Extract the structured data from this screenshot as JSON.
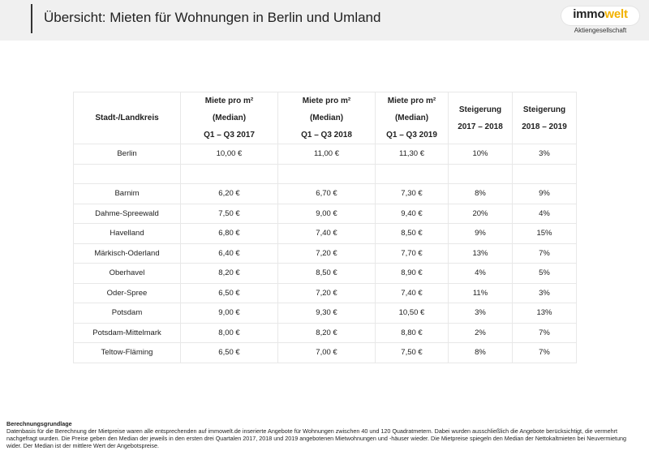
{
  "header": {
    "title": "Übersicht: Mieten für Wohnungen in Berlin und Umland",
    "logo_pre": "immo",
    "logo_accent": "welt",
    "logo_sub": "Aktiengesellschaft",
    "accent_color": "#f2b200"
  },
  "table": {
    "headers": [
      [
        "Stadt-/Landkreis"
      ],
      [
        "Miete pro m²",
        "(Median)",
        "Q1 – Q3 2017"
      ],
      [
        "Miete pro m²",
        "(Median)",
        "Q1 – Q3 2018"
      ],
      [
        "Miete pro m²",
        "(Median)",
        "Q1 – Q3 2019"
      ],
      [
        "Steigerung",
        "2017 – 2018"
      ],
      [
        "Steigerung",
        "2018 – 2019"
      ]
    ],
    "rows": [
      [
        "Berlin",
        "10,00 €",
        "11,00 €",
        "11,30 €",
        "10%",
        "3%"
      ],
      [
        "",
        "",
        "",
        "",
        "",
        ""
      ],
      [
        "Barnim",
        "6,20 €",
        "6,70 €",
        "7,30 €",
        "8%",
        "9%"
      ],
      [
        "Dahme-Spreewald",
        "7,50 €",
        "9,00 €",
        "9,40 €",
        "20%",
        "4%"
      ],
      [
        "Havelland",
        "6,80 €",
        "7,40 €",
        "8,50 €",
        "9%",
        "15%"
      ],
      [
        "Märkisch-Oderland",
        "6,40 €",
        "7,20 €",
        "7,70 €",
        "13%",
        "7%"
      ],
      [
        "Oberhavel",
        "8,20 €",
        "8,50 €",
        "8,90 €",
        "4%",
        "5%"
      ],
      [
        "Oder-Spree",
        "6,50 €",
        "7,20 €",
        "7,40 €",
        "11%",
        "3%"
      ],
      [
        "Potsdam",
        "9,00 €",
        "9,30 €",
        "10,50 €",
        "3%",
        "13%"
      ],
      [
        "Potsdam-Mittelmark",
        "8,00 €",
        "8,20 €",
        "8,80 €",
        "2%",
        "7%"
      ],
      [
        "Teltow-Fläming",
        "6,50 €",
        "7,00 €",
        "7,50 €",
        "8%",
        "7%"
      ]
    ]
  },
  "footer": {
    "title": "Berechnungsgrundlage",
    "text": "Datenbasis für die Berechnung der Mietpreise waren alle entsprechenden auf immowelt.de inserierte Angebote für Wohnungen zwischen 40 und 120 Quadratmetern. Dabei wurden ausschließlich die Angebote berücksichtigt, die vermehrt nachgefragt wurden. Die Preise geben den Median der jeweils in den ersten drei Quartalen 2017, 2018 und 2019 angebotenen Mietwohnungen und -häuser wieder. Die Mietpreise spiegeln den Median der Nettokaltmieten bei Neuvermietung wider. Der Median ist der mittlere Wert der Angebotspreise."
  }
}
